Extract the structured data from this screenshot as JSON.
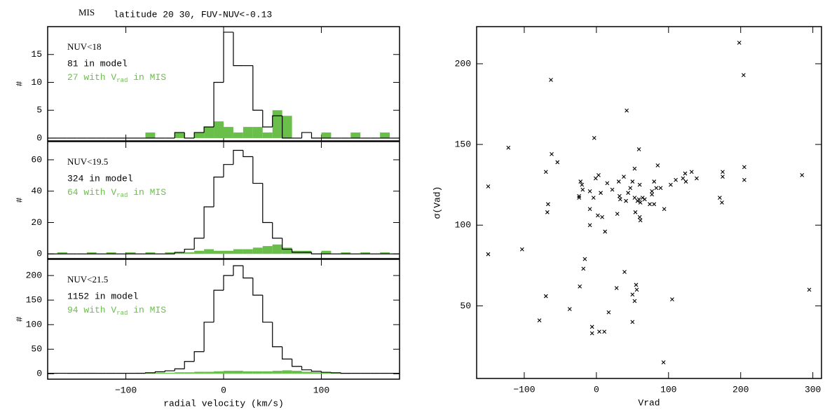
{
  "chart_data": [
    {
      "type": "histogram",
      "title": "MIS",
      "subtitle": "latitude 20 30, FUV-NUV<-0.13",
      "label": "NUV<18",
      "model_note": "81 in model",
      "mis_note": {
        "text": "27 with V",
        "sub": "rad",
        "tail": " in MIS"
      },
      "ylabel": "#",
      "show_xtick_labels": false,
      "bins": [
        -180,
        -170,
        -160,
        -150,
        -140,
        -130,
        -120,
        -110,
        -100,
        -90,
        -80,
        -70,
        -60,
        -50,
        -40,
        -30,
        -20,
        -10,
        0,
        10,
        20,
        30,
        40,
        50,
        60,
        70,
        80,
        90,
        100,
        110,
        120,
        130,
        140,
        150,
        160,
        170,
        180
      ],
      "series": [
        {
          "style": "bar",
          "color": "#6abf4b",
          "values": [
            0,
            0,
            0,
            0,
            0,
            0,
            0,
            0,
            0,
            0,
            1,
            0,
            0,
            1,
            0,
            1,
            2,
            3,
            2,
            1,
            2,
            2,
            1,
            5,
            4,
            0,
            0,
            0,
            1,
            0,
            0,
            1,
            0,
            0,
            1,
            0
          ]
        },
        {
          "style": "step",
          "color": "#000000",
          "values": [
            0,
            0,
            0,
            0,
            0,
            0,
            0,
            0,
            0,
            0,
            0,
            0,
            0,
            1,
            0,
            1,
            2,
            10,
            19,
            13,
            13,
            5,
            2,
            4,
            0,
            0,
            1,
            0,
            0,
            0,
            0,
            0,
            0,
            0,
            0,
            0
          ]
        }
      ],
      "xlim": [
        -180,
        180
      ],
      "xticks": [
        {
          "value": -100,
          "label": "−100"
        },
        0,
        100
      ],
      "ylim": [
        -0.5,
        20
      ],
      "yticks": [
        0,
        5,
        10,
        15
      ]
    },
    {
      "type": "histogram",
      "label": "NUV<19.5",
      "model_note": "324 in model",
      "mis_note": {
        "text": "64 with V",
        "sub": "rad",
        "tail": " in MIS"
      },
      "ylabel": "#",
      "show_xtick_labels": false,
      "bins": [
        -180,
        -170,
        -160,
        -150,
        -140,
        -130,
        -120,
        -110,
        -100,
        -90,
        -80,
        -70,
        -60,
        -50,
        -40,
        -30,
        -20,
        -10,
        0,
        10,
        20,
        30,
        40,
        50,
        60,
        70,
        80,
        90,
        100,
        110,
        120,
        130,
        140,
        150,
        160,
        170,
        180
      ],
      "series": [
        {
          "style": "bar",
          "color": "#6abf4b",
          "values": [
            0,
            1,
            0,
            0,
            1,
            0,
            1,
            0,
            1,
            0,
            1,
            0,
            1,
            1,
            1,
            2,
            3,
            2,
            2,
            3,
            3,
            4,
            5,
            6,
            4,
            2,
            2,
            0,
            2,
            0,
            1,
            0,
            1,
            0,
            1,
            0
          ]
        },
        {
          "style": "step",
          "color": "#000000",
          "values": [
            0,
            0,
            0,
            0,
            0,
            0,
            0,
            0,
            0,
            0,
            0,
            0,
            0,
            1,
            3,
            10,
            30,
            49,
            57,
            66,
            62,
            45,
            20,
            10,
            3,
            1,
            1,
            0,
            0,
            0,
            0,
            0,
            0,
            0,
            0,
            0
          ]
        }
      ],
      "xlim": [
        -180,
        180
      ],
      "xticks": [
        {
          "value": -100,
          "label": "−100"
        },
        0,
        100
      ],
      "ylim": [
        -3,
        71.6
      ],
      "yticks": [
        0,
        20,
        40,
        60
      ]
    },
    {
      "type": "histogram",
      "label": "NUV<21.5",
      "model_note": "1152 in model",
      "mis_note": {
        "text": "94 with V",
        "sub": "rad",
        "tail": " in MIS"
      },
      "ylabel": "#",
      "xlabel": "radial velocity (km/s)",
      "show_xtick_labels": true,
      "bins": [
        -180,
        -170,
        -160,
        -150,
        -140,
        -130,
        -120,
        -110,
        -100,
        -90,
        -80,
        -70,
        -60,
        -50,
        -40,
        -30,
        -20,
        -10,
        0,
        10,
        20,
        30,
        40,
        50,
        60,
        70,
        80,
        90,
        100,
        110,
        120,
        130,
        140,
        150,
        160,
        170,
        180
      ],
      "series": [
        {
          "style": "bar",
          "color": "#6abf4b",
          "values": [
            0,
            0,
            1,
            2,
            2,
            1,
            1,
            1,
            1,
            2,
            2,
            2,
            2,
            3,
            3,
            4,
            4,
            5,
            6,
            6,
            5,
            5,
            5,
            6,
            7,
            6,
            4,
            3,
            2,
            2,
            1,
            1,
            1,
            1,
            1,
            0
          ]
        },
        {
          "style": "step",
          "color": "#000000",
          "values": [
            1,
            1,
            1,
            1,
            1,
            1,
            1,
            1,
            1,
            1,
            2,
            4,
            6,
            10,
            25,
            45,
            105,
            170,
            200,
            220,
            195,
            160,
            105,
            55,
            30,
            15,
            8,
            5,
            3,
            2,
            1,
            1,
            1,
            1,
            1,
            1
          ]
        }
      ],
      "xlim": [
        -180,
        180
      ],
      "xticks": [
        {
          "value": -100,
          "label": "−100"
        },
        0,
        100
      ],
      "ylim": [
        -11,
        233
      ],
      "yticks": [
        0,
        50,
        100,
        150,
        200
      ]
    },
    {
      "type": "scatter",
      "xlabel": "Vrad",
      "ylabel": "σ(Vad)",
      "color": "#000000",
      "x": [
        -150,
        -150,
        -122,
        -63,
        -62,
        -54,
        -70,
        -67,
        -68,
        -103,
        -70,
        -79,
        -37,
        -23,
        -18,
        -16,
        -6,
        -6,
        4,
        11,
        17,
        28,
        39,
        42,
        59,
        50,
        55,
        56,
        53,
        50,
        93,
        105,
        -3,
        6,
        3,
        -1,
        -24,
        -24,
        -22,
        -20,
        -19,
        -9,
        -9,
        -4,
        -9,
        2,
        8,
        12,
        15,
        22,
        31,
        29,
        32,
        33,
        38,
        41,
        44,
        47,
        50,
        53,
        54,
        57,
        59,
        61,
        64,
        60,
        60,
        61,
        53,
        67,
        74,
        77,
        80,
        80,
        77,
        83,
        89,
        85,
        94,
        103,
        110,
        120,
        123,
        124,
        132,
        139,
        175,
        175,
        205,
        205,
        171,
        174,
        198,
        204,
        285,
        295
      ],
      "values": [
        124,
        82,
        148,
        190,
        144,
        139,
        133,
        113,
        108,
        85,
        56,
        41,
        48,
        62,
        73,
        79,
        37,
        33,
        34,
        34,
        46,
        61,
        71,
        171,
        147,
        57,
        63,
        60,
        53,
        40,
        15,
        54,
        154,
        120,
        131,
        129,
        118,
        117,
        127,
        125,
        122,
        121,
        110,
        117,
        100,
        106,
        105,
        96,
        126,
        122,
        127,
        107,
        118,
        116,
        130,
        115,
        120,
        123,
        127,
        117,
        108,
        115,
        116,
        114,
        117,
        125,
        105,
        103,
        135,
        116,
        113,
        119,
        113,
        127,
        121,
        123,
        123,
        137,
        110,
        125,
        128,
        129,
        132,
        127,
        133,
        129,
        133,
        130,
        136,
        128,
        117,
        114,
        213,
        193,
        131,
        60
      ],
      "xlim": [
        -166,
        312
      ],
      "xticks": [
        {
          "value": -100,
          "label": "−100"
        },
        0,
        100,
        200,
        300
      ],
      "ylim": [
        5,
        223
      ],
      "yticks": [
        50,
        100,
        150,
        200
      ]
    }
  ]
}
